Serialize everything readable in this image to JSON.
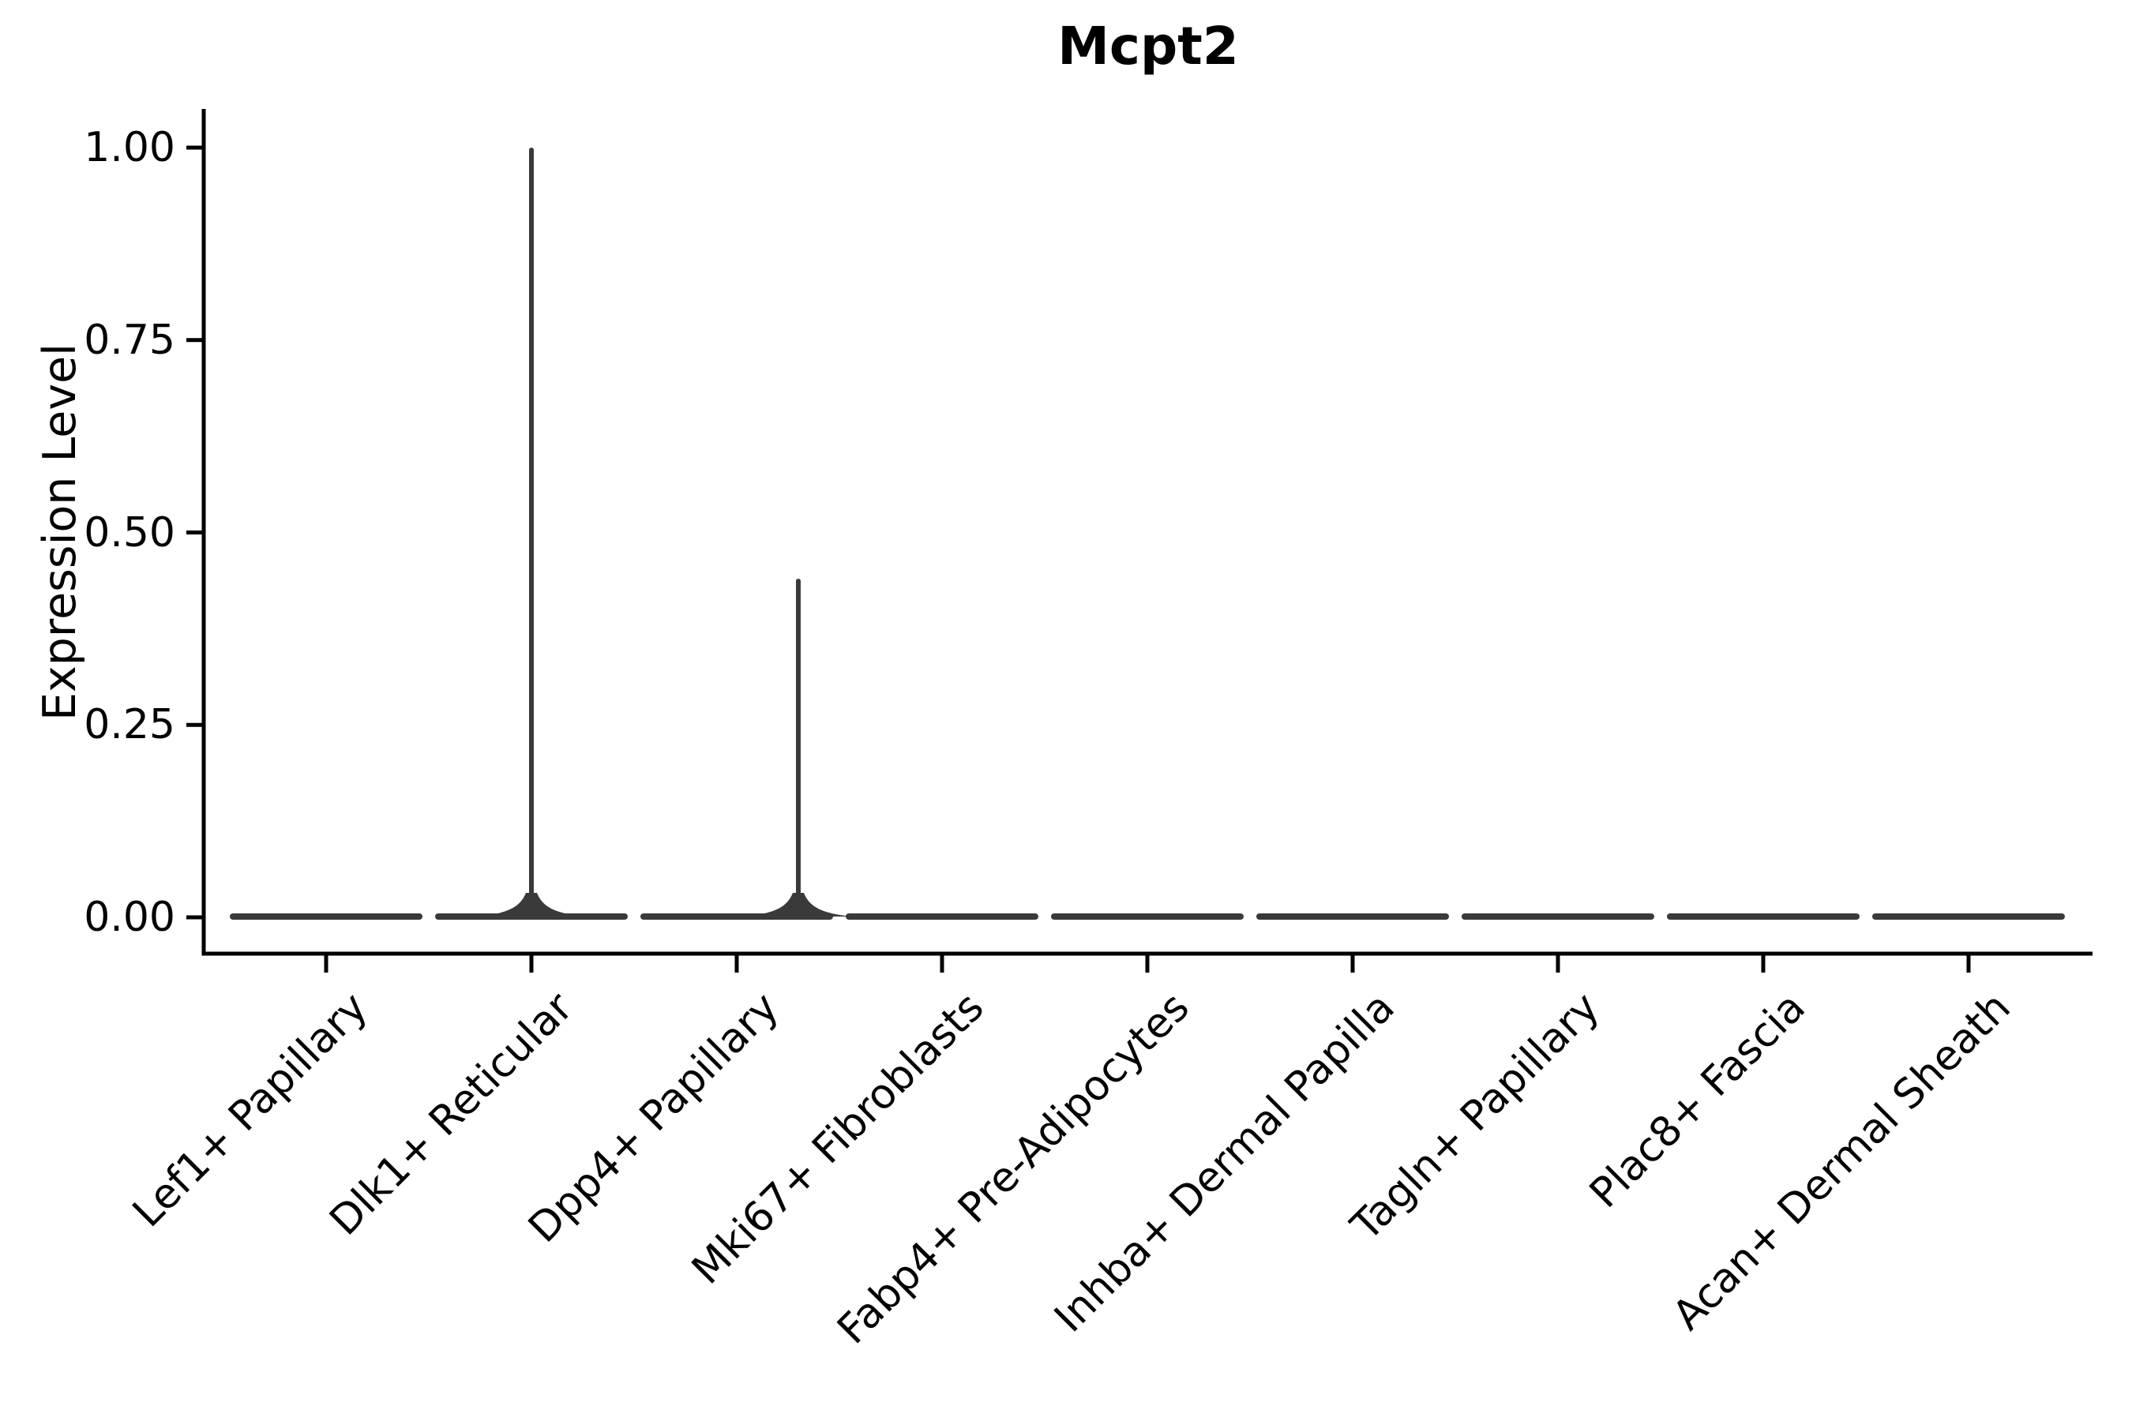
{
  "page": {
    "background": "#ffffff"
  },
  "chart_data": {
    "type": "violin",
    "title": "Mcpt2",
    "xlabel": "",
    "ylabel": "Expression Level",
    "ylim": [
      -0.05,
      1.05
    ],
    "grid": false,
    "legend": "none",
    "y_ticks": [
      {
        "value": 0.0,
        "label": "0.00"
      },
      {
        "value": 0.25,
        "label": "0.25"
      },
      {
        "value": 0.5,
        "label": "0.50"
      },
      {
        "value": 0.75,
        "label": "0.75"
      },
      {
        "value": 1.0,
        "label": "1.00"
      }
    ],
    "categories": [
      "Lef1+ Papillary",
      "Dlk1+ Reticular",
      "Dpp4+ Papillary",
      "Mki67+ Fibroblasts",
      "Fabp4+ Pre-Adipocytes",
      "Inhba+ Dermal Papilla",
      "Tagln+ Papillary",
      "Plac8+ Fascia",
      "Acan+ Dermal Sheath"
    ],
    "violins": [
      {
        "category": "Lef1+ Papillary",
        "body": "flat",
        "baseline_value": 0.0,
        "max_value": 0.0
      },
      {
        "category": "Dlk1+ Reticular",
        "body": "flat_with_spike",
        "baseline_value": 0.0,
        "max_value": 1.0,
        "spike": {
          "top_value": 1.0,
          "offset_frac_of_pitch": 0.0
        }
      },
      {
        "category": "Dpp4+ Papillary",
        "body": "flat_with_spike",
        "baseline_value": 0.0,
        "max_value": 0.44,
        "spike": {
          "top_value": 0.44,
          "offset_frac_of_pitch": 0.3
        }
      },
      {
        "category": "Mki67+ Fibroblasts",
        "body": "flat",
        "baseline_value": 0.0,
        "max_value": 0.0
      },
      {
        "category": "Fabp4+ Pre-Adipocytes",
        "body": "flat",
        "baseline_value": 0.0,
        "max_value": 0.0
      },
      {
        "category": "Inhba+ Dermal Papilla",
        "body": "flat",
        "baseline_value": 0.0,
        "max_value": 0.0
      },
      {
        "category": "Tagln+ Papillary",
        "body": "flat",
        "baseline_value": 0.0,
        "max_value": 0.0
      },
      {
        "category": "Plac8+ Fascia",
        "body": "flat",
        "baseline_value": 0.0,
        "max_value": 0.0
      },
      {
        "category": "Acan+ Dermal Sheath",
        "body": "flat",
        "baseline_value": 0.0,
        "max_value": 0.0
      }
    ],
    "colors": {
      "violin_stroke": "#3a3a3a",
      "axis": "#000000",
      "text": "#000000",
      "background": "#ffffff"
    }
  }
}
